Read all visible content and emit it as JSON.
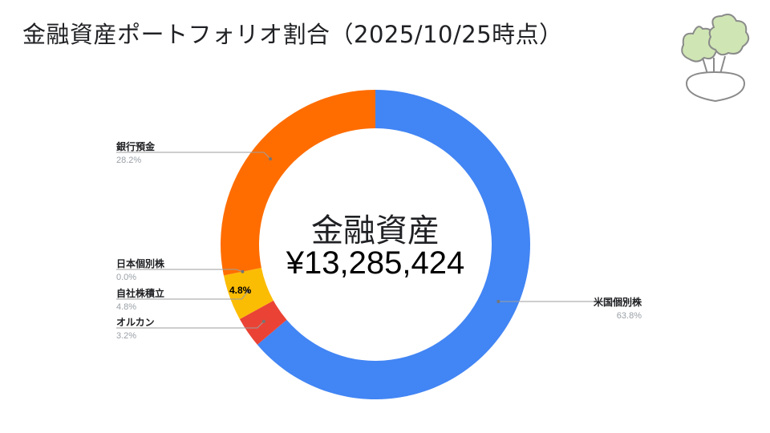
{
  "title": "金融資産ポートフォリオ割合（2025/10/25時点）",
  "logo_icon": "turnip-icon",
  "chart_data": {
    "type": "pie",
    "style": "donut",
    "center_title": "金融資産",
    "center_value": "¥13,285,424",
    "slices": [
      {
        "name": "米国個別株",
        "value": 63.8,
        "label": "63.8%",
        "color": "#4285f4"
      },
      {
        "name": "オルカン",
        "value": 3.2,
        "label": "3.2%",
        "color": "#ea4335"
      },
      {
        "name": "自社株積立",
        "value": 4.8,
        "label": "4.8%",
        "color": "#fbbc04"
      },
      {
        "name": "日本個別株",
        "value": 0.0,
        "label": "0.0%",
        "color": "#34a853"
      },
      {
        "name": "銀行預金",
        "value": 28.2,
        "label": "28.2%",
        "color": "#ff6d01"
      }
    ],
    "inner_label": "4.8%",
    "legend": "callouts"
  }
}
